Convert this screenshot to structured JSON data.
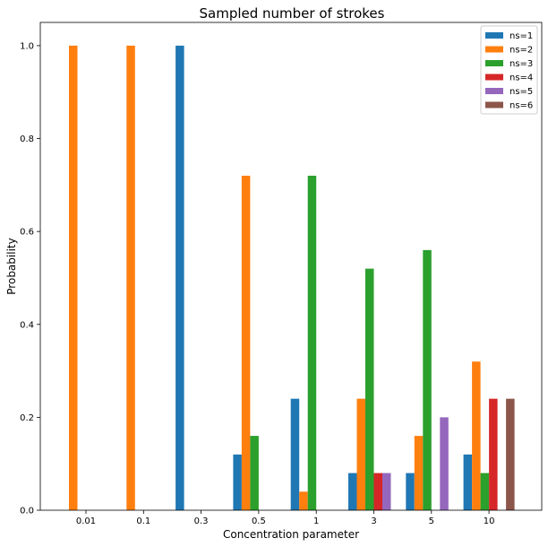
{
  "chart_data": {
    "type": "bar",
    "title": "Sampled number of strokes",
    "xlabel": "Concentration parameter",
    "ylabel": "Probability",
    "categories": [
      "0.01",
      "0.1",
      "0.3",
      "0.5",
      "1",
      "3",
      "5",
      "10"
    ],
    "ylim": [
      0,
      1.05
    ],
    "yticks": [
      "0.0",
      "0.2",
      "0.4",
      "0.6",
      "0.8",
      "1.0"
    ],
    "grid": false,
    "legend_position": "top-right",
    "series": [
      {
        "name": "ns=1",
        "color": "#1f77b4",
        "values": [
          0,
          0,
          1.0,
          0.12,
          0.24,
          0.08,
          0.08,
          0.12
        ]
      },
      {
        "name": "ns=2",
        "color": "#ff7f0e",
        "values": [
          1.0,
          1.0,
          0,
          0.72,
          0.04,
          0.24,
          0.16,
          0.32
        ]
      },
      {
        "name": "ns=3",
        "color": "#2ca02c",
        "values": [
          0,
          0,
          0,
          0.16,
          0.72,
          0.52,
          0.56,
          0.08
        ]
      },
      {
        "name": "ns=4",
        "color": "#d62728",
        "values": [
          0,
          0,
          0,
          0,
          0,
          0.08,
          0,
          0.24
        ]
      },
      {
        "name": "ns=5",
        "color": "#9467bd",
        "values": [
          0,
          0,
          0,
          0,
          0,
          0.08,
          0.2,
          0
        ]
      },
      {
        "name": "ns=6",
        "color": "#8c564b",
        "values": [
          0,
          0,
          0,
          0,
          0,
          0,
          0,
          0.24
        ]
      }
    ]
  }
}
